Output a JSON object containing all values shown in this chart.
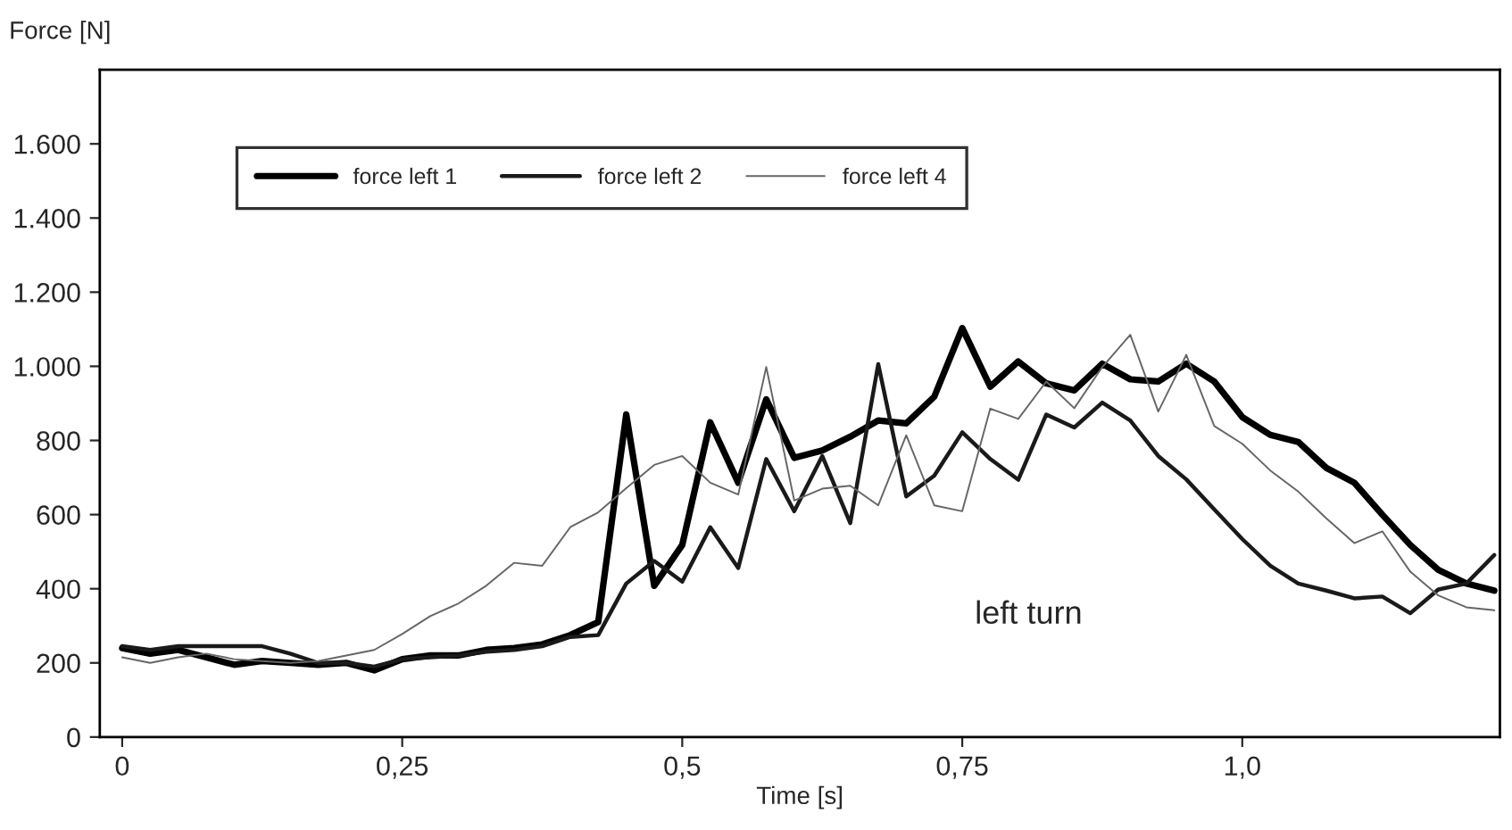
{
  "chart_data": {
    "type": "line",
    "xlabel": "Time [s]",
    "ylabel": "Force [N]",
    "x": [
      0,
      0.025,
      0.05,
      0.075,
      0.1,
      0.125,
      0.15,
      0.175,
      0.2,
      0.225,
      0.25,
      0.275,
      0.3,
      0.325,
      0.35,
      0.375,
      0.4,
      0.425,
      0.45,
      0.475,
      0.5,
      0.525,
      0.55,
      0.575,
      0.6,
      0.625,
      0.65,
      0.675,
      0.7,
      0.725,
      0.75,
      0.775,
      0.8,
      0.825,
      0.85,
      0.875,
      0.9,
      0.925,
      0.95,
      0.975,
      1.0,
      1.025,
      1.05,
      1.075,
      1.1,
      1.125,
      1.15,
      1.175,
      1.2,
      1.225
    ],
    "series": [
      {
        "name": "force left 1",
        "color": "#000000",
        "values": [
          240,
          225,
          235,
          215,
          195,
          205,
          200,
          195,
          200,
          180,
          210,
          220,
          220,
          235,
          240,
          250,
          275,
          310,
          870,
          408,
          518,
          849,
          686,
          911,
          753,
          773,
          810,
          854,
          846,
          918,
          1103,
          945,
          1013,
          954,
          935,
          1007,
          965,
          959,
          1007,
          959,
          863,
          815,
          796,
          726,
          686,
          600,
          518,
          451,
          414,
          395
        ]
      },
      {
        "name": "force left 2",
        "color": "#1a1a1a",
        "values": [
          245,
          235,
          245,
          245,
          245,
          245,
          225,
          200,
          200,
          190,
          210,
          215,
          220,
          230,
          235,
          245,
          270,
          275,
          414,
          475,
          419,
          566,
          456,
          750,
          609,
          758,
          577,
          1006,
          649,
          705,
          822,
          750,
          694,
          870,
          835,
          902,
          854,
          758,
          695,
          614,
          534,
          462,
          414,
          395,
          374,
          379,
          334,
          398,
          414,
          491
        ]
      },
      {
        "name": "force left 4",
        "color": "#666666",
        "values": [
          215,
          200,
          215,
          225,
          210,
          205,
          200,
          205,
          220,
          235,
          278,
          326,
          360,
          408,
          470,
          462,
          566,
          606,
          671,
          734,
          758,
          686,
          654,
          998,
          638,
          670,
          678,
          625,
          814,
          625,
          609,
          886,
          858,
          959,
          887,
          998,
          1085,
          878,
          1031,
          839,
          791,
          719,
          662,
          590,
          523,
          555,
          446,
          382,
          350,
          342
        ]
      }
    ],
    "xlim": [
      -0.02,
      1.23
    ],
    "xticks": [
      0,
      {
        "value": 0.25,
        "label": "0,25"
      },
      {
        "value": 0.5,
        "label": "0,5"
      },
      {
        "value": 0.75,
        "label": "0,75"
      },
      {
        "value": 1.0,
        "label": "1,0"
      }
    ],
    "ylim": [
      0,
      1800
    ],
    "yticks": [
      0,
      200,
      400,
      600,
      800,
      {
        "value": 1000,
        "label": "1.000"
      },
      {
        "value": 1200,
        "label": "1.200"
      },
      {
        "value": 1400,
        "label": "1.400"
      },
      {
        "value": 1600,
        "label": "1.600"
      }
    ],
    "annotations": [
      "left turn"
    ],
    "legend": "top left",
    "grid": false,
    "line_style": "solid",
    "marker": "none"
  }
}
